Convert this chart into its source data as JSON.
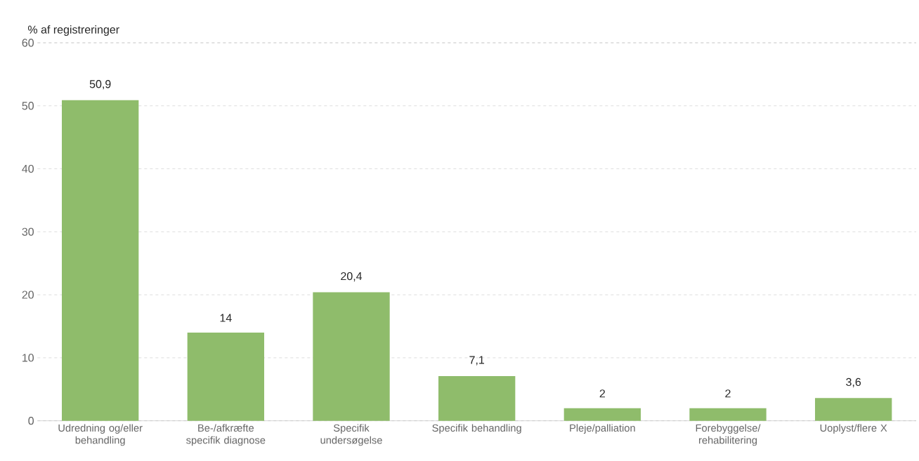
{
  "chart_data": {
    "type": "bar",
    "ylabel": "% af registreringer",
    "categories": [
      "Udredning og/eller behandling",
      "Be-/afkræfte specifik diagnose",
      "Specifik undersøgelse",
      "Specifik behandling",
      "Pleje/palliation",
      "Forebyggelse/ rehabilitering",
      "Uoplyst/flere X"
    ],
    "values": [
      50.9,
      14,
      20.4,
      7.1,
      2,
      2,
      3.6
    ],
    "value_labels": [
      "50,9",
      "14",
      "20,4",
      "7,1",
      "2",
      "2",
      "3,6"
    ],
    "color": "#8fbc6b",
    "ylim": [
      0,
      60
    ],
    "yticks": [
      0,
      10,
      20,
      30,
      40,
      50,
      60
    ],
    "grid": "y"
  }
}
